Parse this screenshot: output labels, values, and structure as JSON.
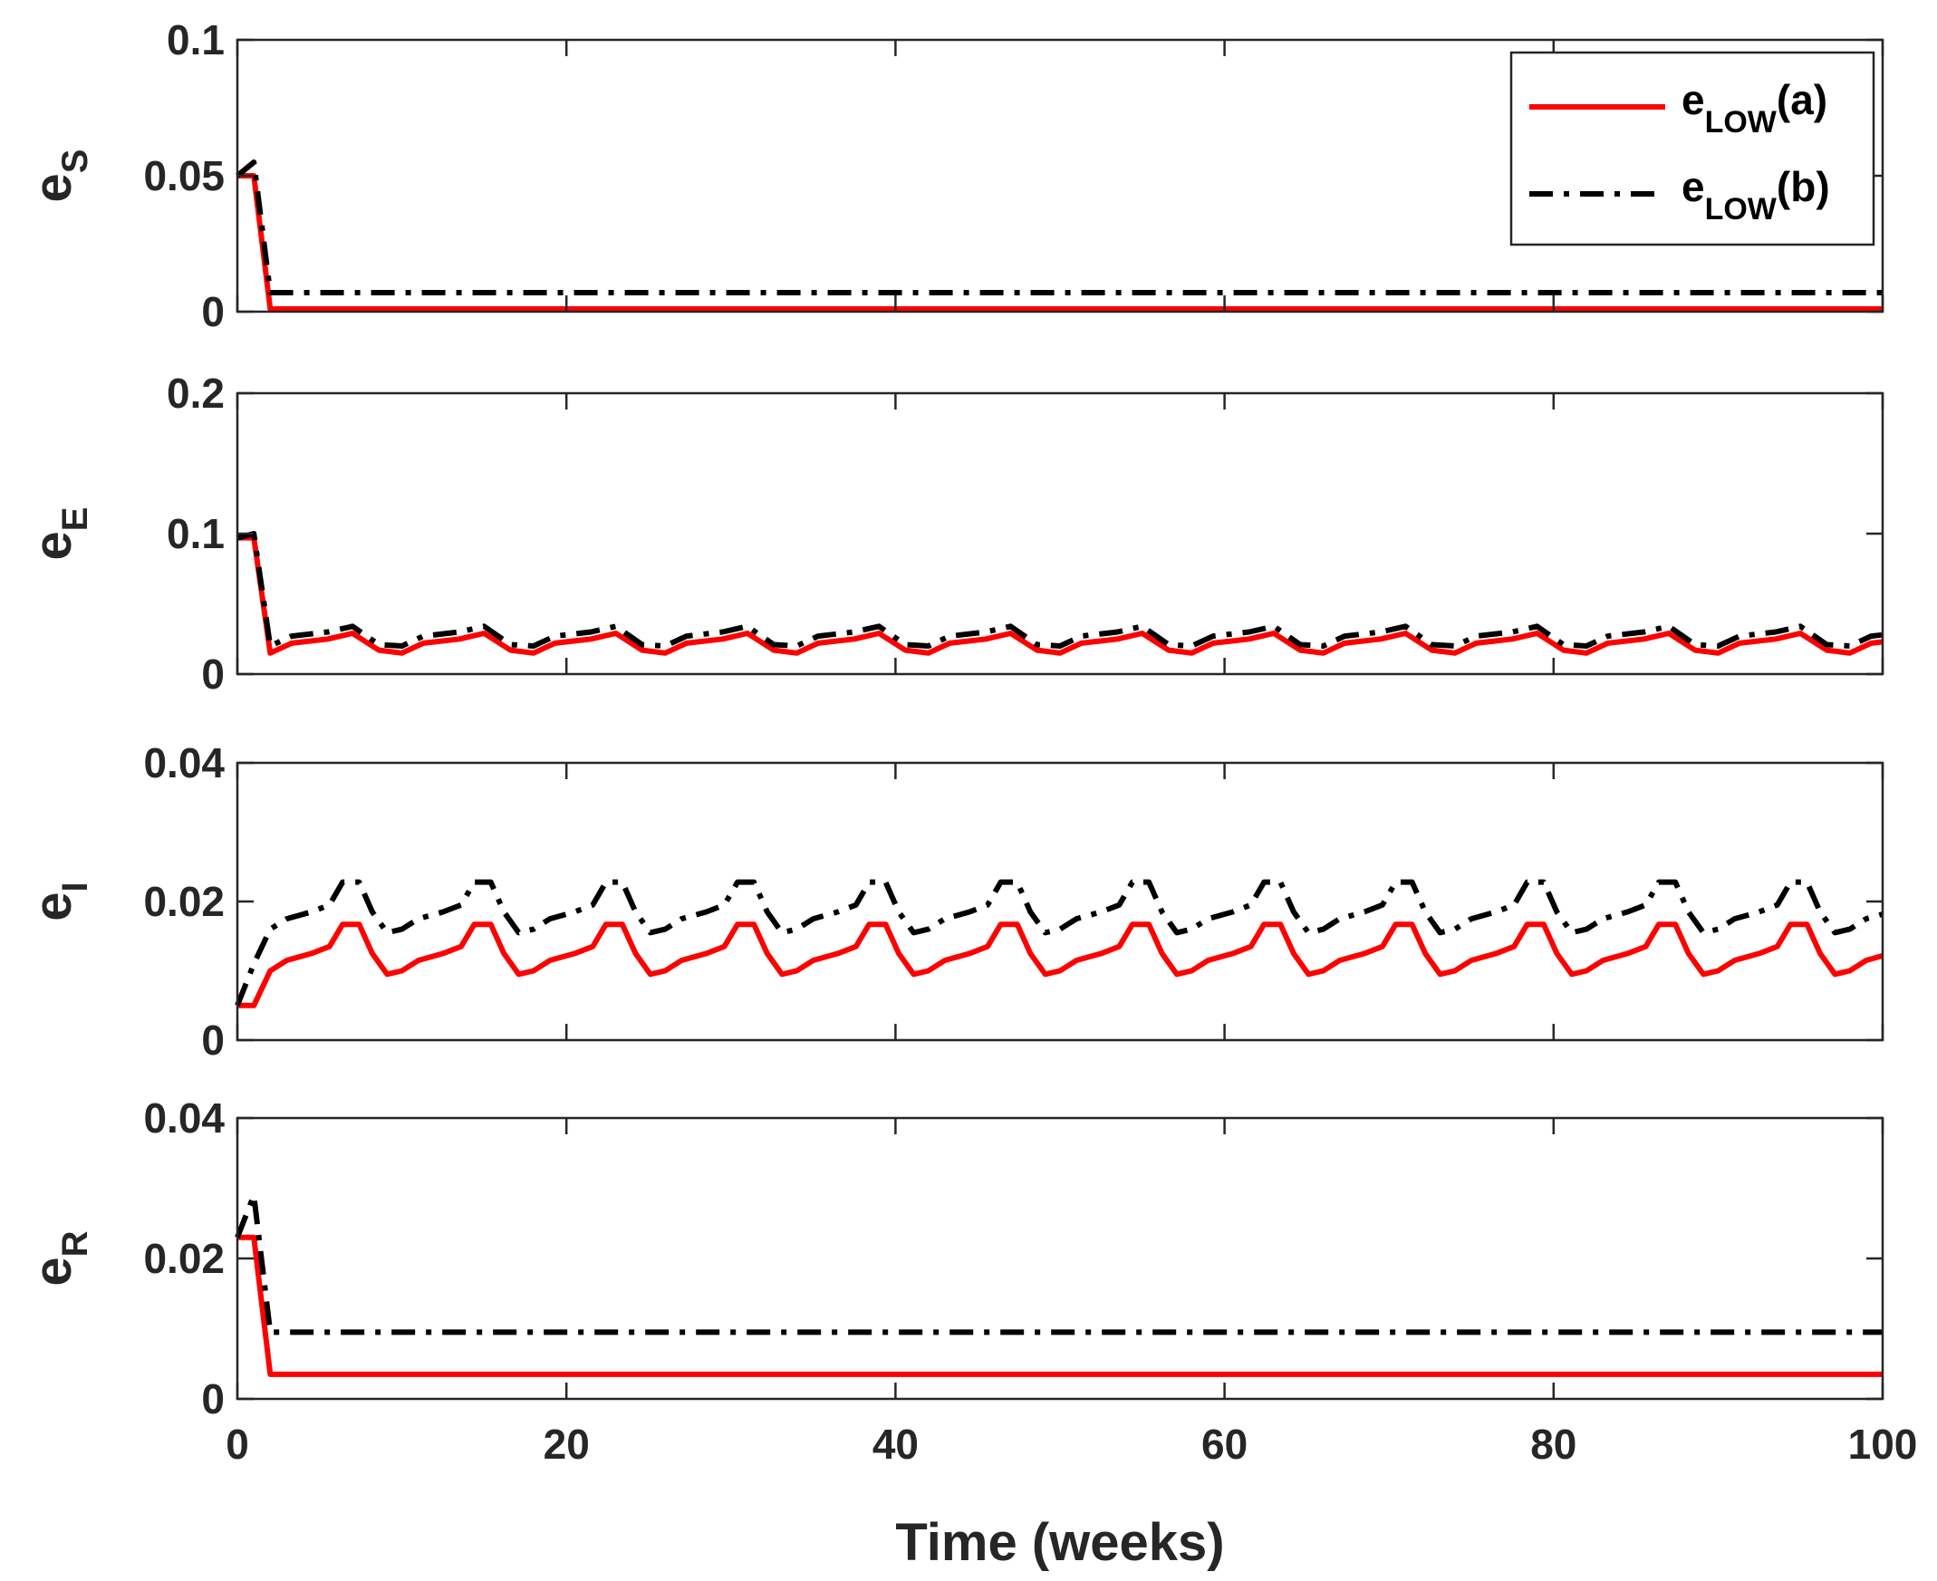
{
  "chart_data": {
    "type": "line",
    "xlabel": "Time (weeks)",
    "xlim": [
      0,
      100
    ],
    "xticks": [
      "0",
      "20",
      "40",
      "60",
      "80",
      "100"
    ],
    "colors": {
      "a": "#ff0000",
      "b": "#000000"
    },
    "legend": {
      "placement": "top-right",
      "entries": [
        {
          "base": "e",
          "sub": "LOW",
          "suffix": "(a)",
          "series": "a"
        },
        {
          "base": "e",
          "sub": "LOW",
          "suffix": "(b)",
          "series": "b"
        }
      ]
    },
    "panels": [
      {
        "ylabel_base": "e",
        "ylabel_sub": "S",
        "ylim": [
          0,
          0.1
        ],
        "yticks": [
          "0",
          "0.05",
          "0.1"
        ],
        "series": [
          {
            "name": "e_LOW(a)",
            "key": "a",
            "style": "solid",
            "points": [
              [
                0,
                0.05
              ],
              [
                1,
                0.05
              ],
              [
                2,
                0.001
              ],
              [
                100,
                0.001
              ]
            ]
          },
          {
            "name": "e_LOW(b)",
            "key": "b",
            "style": "dashdot",
            "points": [
              [
                0,
                0.05
              ],
              [
                1,
                0.055
              ],
              [
                2,
                0.007
              ],
              [
                100,
                0.007
              ]
            ]
          }
        ]
      },
      {
        "ylabel_base": "e",
        "ylabel_sub": "E",
        "ylim": [
          0,
          0.2
        ],
        "yticks": [
          "0",
          "0.1",
          "0.2"
        ],
        "periodic": true,
        "series": [
          {
            "name": "e_LOW(a)",
            "key": "a",
            "style": "solid",
            "start": [
              [
                0,
                0.097
              ],
              [
                1,
                0.097
              ],
              [
                2,
                0.015
              ]
            ],
            "cycle": [
              [
                0,
                0.015
              ],
              [
                1.3,
                0.022
              ],
              [
                3.5,
                0.025
              ],
              [
                5,
                0.029
              ],
              [
                6.6,
                0.017
              ],
              [
                8,
                0.015
              ]
            ],
            "period": 8,
            "end": 100
          },
          {
            "name": "e_LOW(b)",
            "key": "b",
            "style": "dashdot",
            "start": [
              [
                0,
                0.097
              ],
              [
                1,
                0.1
              ],
              [
                2,
                0.02
              ]
            ],
            "cycle": [
              [
                0,
                0.02
              ],
              [
                1.3,
                0.027
              ],
              [
                3.5,
                0.03
              ],
              [
                5,
                0.034
              ],
              [
                6.6,
                0.021
              ],
              [
                8,
                0.02
              ]
            ],
            "period": 8,
            "end": 100
          }
        ]
      },
      {
        "ylabel_base": "e",
        "ylabel_sub": "I",
        "ylim": [
          0,
          0.04
        ],
        "yticks": [
          "0",
          "0.02",
          "0.04"
        ],
        "periodic": true,
        "series": [
          {
            "name": "e_LOW(a)",
            "key": "a",
            "style": "solid",
            "start": [
              [
                0,
                0.005
              ],
              [
                1,
                0.005
              ],
              [
                2,
                0.01
              ]
            ],
            "cycle": [
              [
                0,
                0.01
              ],
              [
                1,
                0.0115
              ],
              [
                2.5,
                0.0125
              ],
              [
                3.6,
                0.0135
              ],
              [
                4.4,
                0.0167
              ],
              [
                5.4,
                0.0167
              ],
              [
                6.2,
                0.0125
              ],
              [
                7.1,
                0.0095
              ],
              [
                8,
                0.01
              ]
            ],
            "period": 8,
            "end": 100
          },
          {
            "name": "e_LOW(b)",
            "key": "b",
            "style": "dashdot",
            "start": [
              [
                0,
                0.005
              ],
              [
                1,
                0.011
              ],
              [
                2,
                0.016
              ]
            ],
            "cycle": [
              [
                0,
                0.016
              ],
              [
                1,
                0.0175
              ],
              [
                2.5,
                0.0185
              ],
              [
                3.6,
                0.0195
              ],
              [
                4.4,
                0.0228
              ],
              [
                5.4,
                0.0228
              ],
              [
                6.2,
                0.0185
              ],
              [
                7.1,
                0.0155
              ],
              [
                8,
                0.016
              ]
            ],
            "period": 8,
            "end": 100
          }
        ]
      },
      {
        "ylabel_base": "e",
        "ylabel_sub": "R",
        "ylim": [
          0,
          0.04
        ],
        "yticks": [
          "0",
          "0.02",
          "0.04"
        ],
        "series": [
          {
            "name": "e_LOW(a)",
            "key": "a",
            "style": "solid",
            "points": [
              [
                0,
                0.023
              ],
              [
                1,
                0.023
              ],
              [
                2,
                0.0035
              ],
              [
                100,
                0.0035
              ]
            ]
          },
          {
            "name": "e_LOW(b)",
            "key": "b",
            "style": "dashdot",
            "points": [
              [
                0,
                0.023
              ],
              [
                1,
                0.029
              ],
              [
                2,
                0.0095
              ],
              [
                100,
                0.0095
              ]
            ]
          }
        ]
      }
    ]
  }
}
